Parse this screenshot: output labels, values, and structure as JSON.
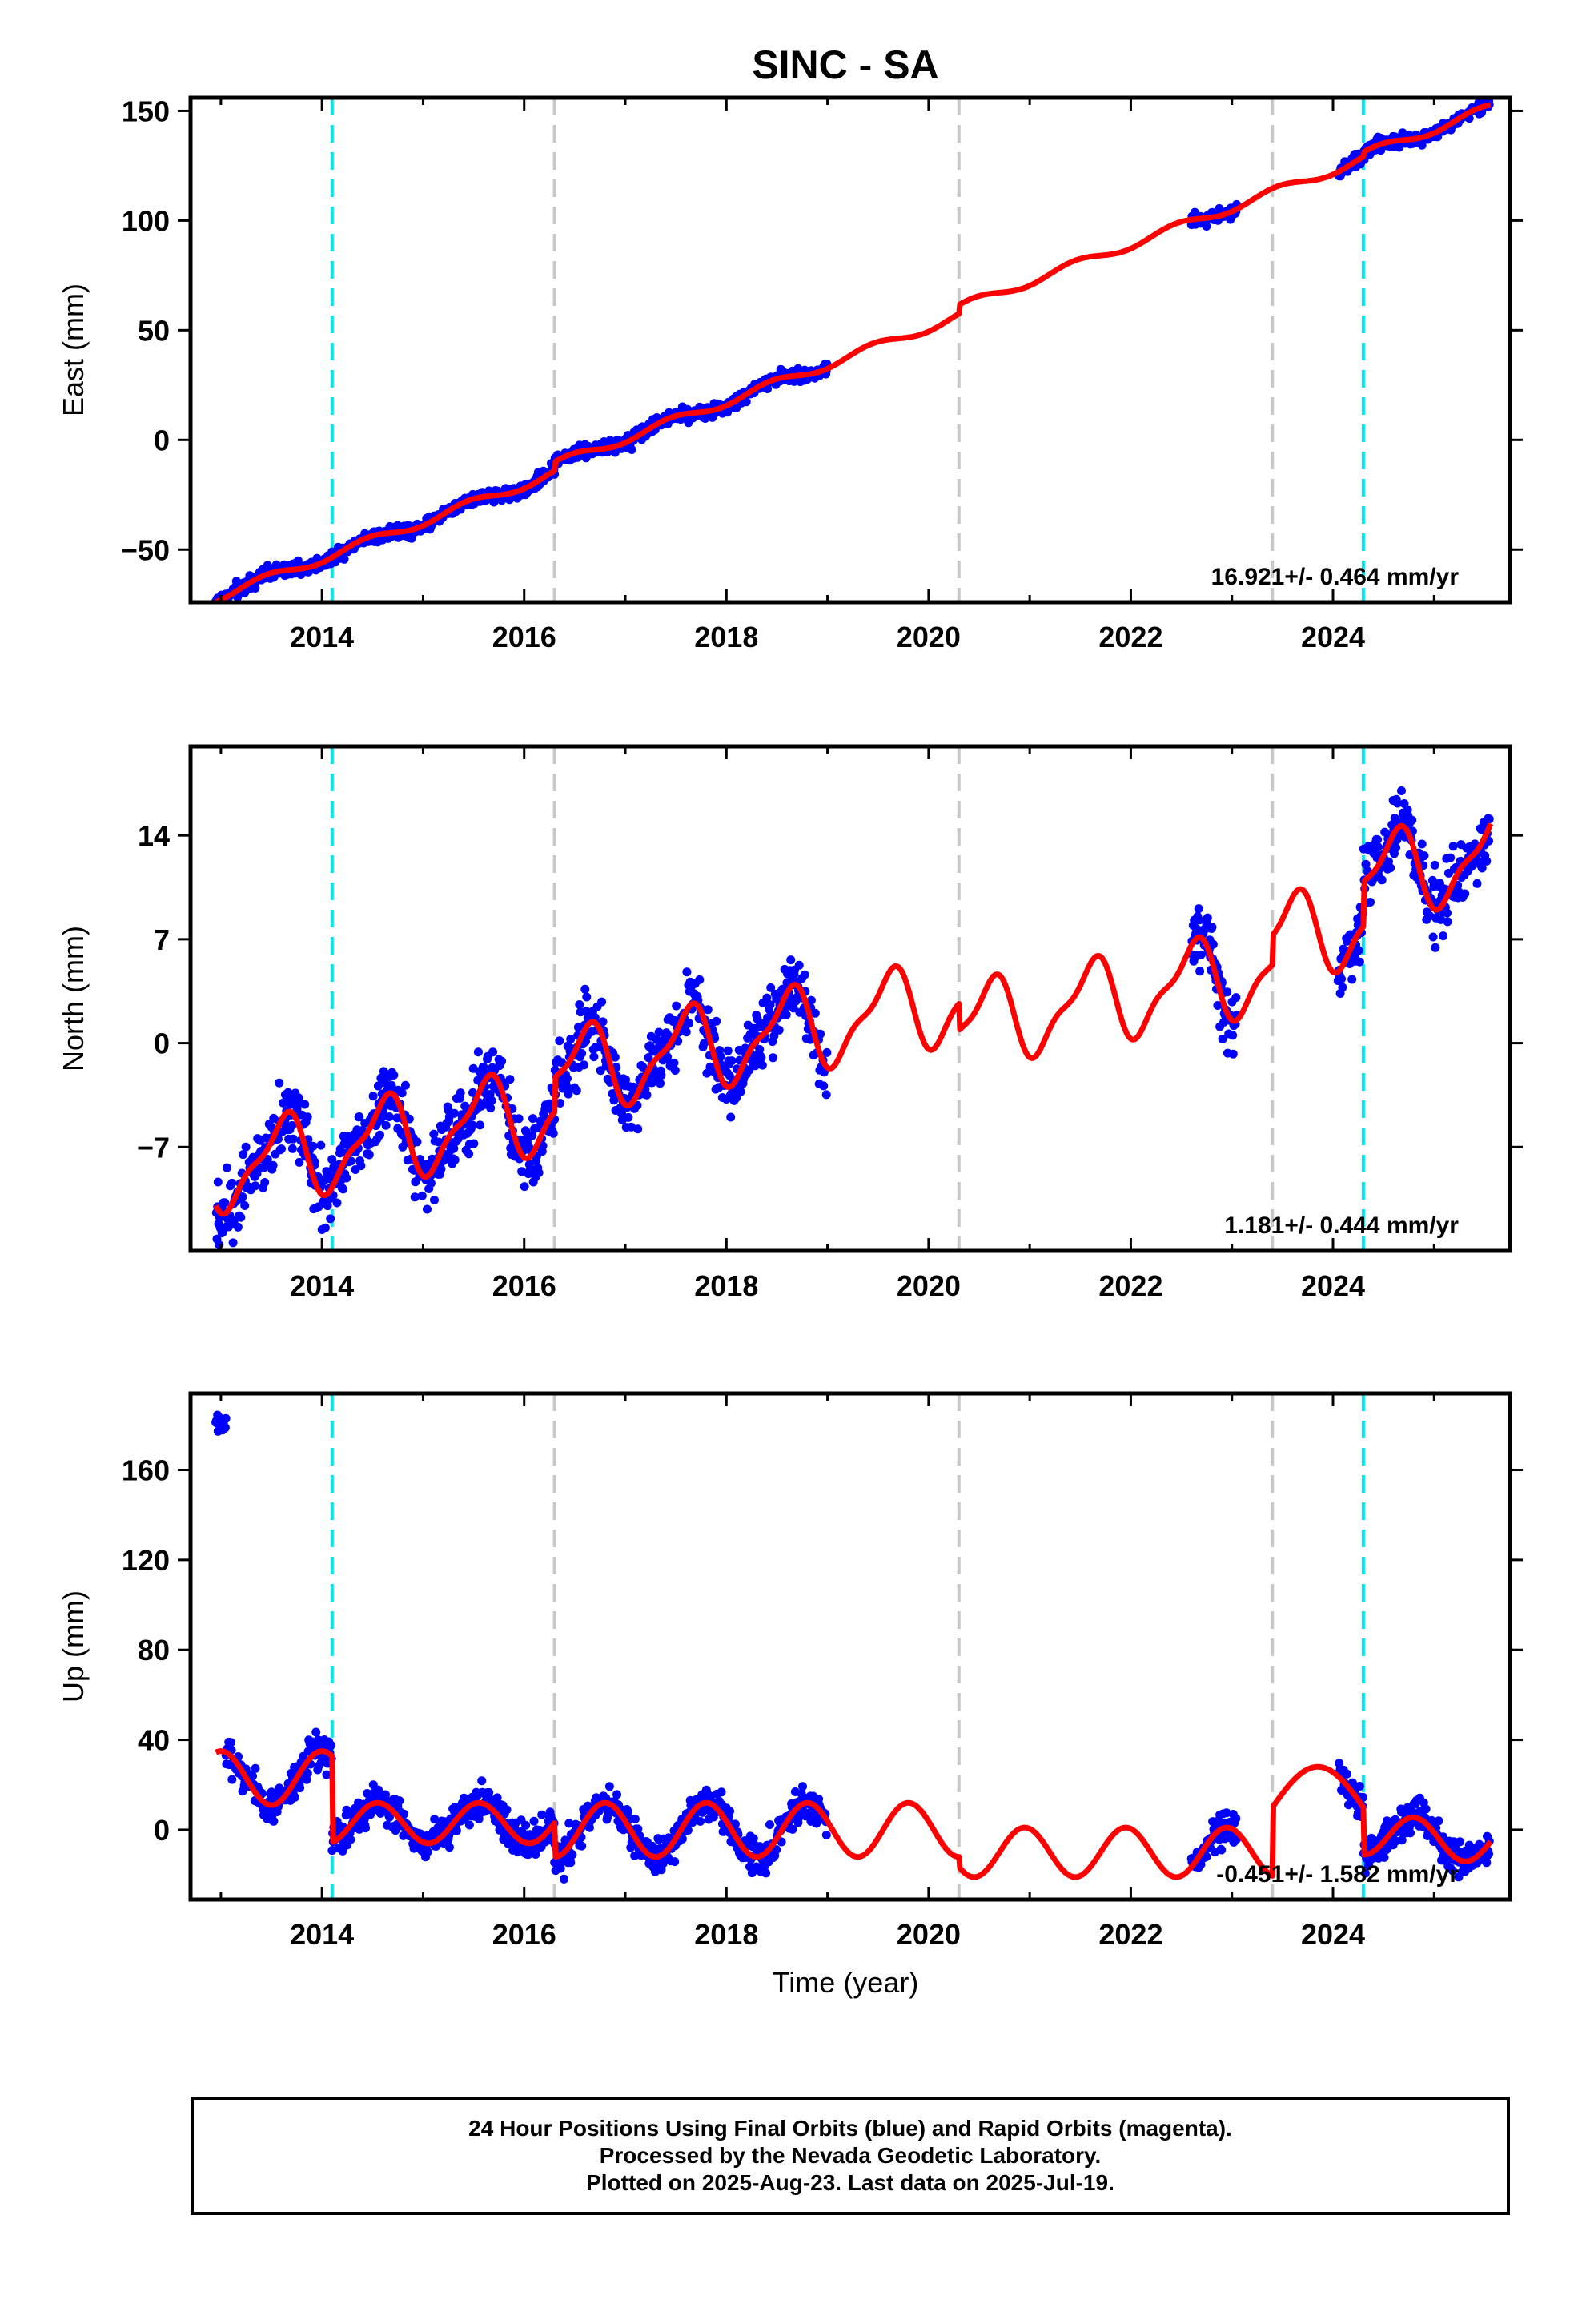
{
  "title": "SINC - SA",
  "chart_data": [
    {
      "type": "scatter",
      "panel": "east",
      "ylabel": "East (mm)",
      "xlabel": "",
      "xlim": [
        2012.7,
        2025.75
      ],
      "ylim": [
        -74,
        156
      ],
      "xticks": [
        2014,
        2016,
        2018,
        2020,
        2022,
        2024
      ],
      "yticks": [
        -50,
        0,
        50,
        100,
        150
      ],
      "rate_label": "16.921+/- 0.464 mm/yr",
      "data_segments": [
        {
          "start": 2012.95,
          "end": 2019.0
        },
        {
          "start": 2022.6,
          "end": 2023.05
        },
        {
          "start": 2024.05,
          "end": 2025.55
        }
      ],
      "offset_lines": {
        "antenna": [
          2014.1,
          2024.3
        ],
        "equipment": [
          2016.3,
          2020.3,
          2023.4
        ]
      },
      "series": [
        {
          "name": "daily positions",
          "role": "points",
          "color": "#0000ff"
        },
        {
          "name": "model fit",
          "role": "line",
          "color": "#ff0000"
        }
      ]
    },
    {
      "type": "scatter",
      "panel": "north",
      "ylabel": "North (mm)",
      "xlabel": "",
      "xlim": [
        2012.7,
        2025.75
      ],
      "ylim": [
        -14,
        20
      ],
      "xticks": [
        2014,
        2016,
        2018,
        2020,
        2022,
        2024
      ],
      "yticks": [
        -7,
        0,
        7,
        14
      ],
      "rate_label": "1.181+/- 0.444 mm/yr",
      "data_segments": [
        {
          "start": 2012.95,
          "end": 2019.0
        },
        {
          "start": 2022.6,
          "end": 2023.05
        },
        {
          "start": 2024.05,
          "end": 2025.55
        }
      ],
      "offset_lines": {
        "antenna": [
          2014.1,
          2024.3
        ],
        "equipment": [
          2016.3,
          2020.3,
          2023.4
        ]
      },
      "series": [
        {
          "name": "daily positions",
          "role": "points",
          "color": "#0000ff"
        },
        {
          "name": "model fit",
          "role": "line",
          "color": "#ff0000"
        }
      ]
    },
    {
      "type": "scatter",
      "panel": "up",
      "ylabel": "Up (mm)",
      "xlabel": "Time (year)",
      "xlim": [
        2012.7,
        2025.75
      ],
      "ylim": [
        -31,
        194
      ],
      "xticks": [
        2014,
        2016,
        2018,
        2020,
        2022,
        2024
      ],
      "yticks": [
        0,
        40,
        80,
        120,
        160
      ],
      "rate_label": "-0.451+/- 1.582 mm/yr",
      "data_segments": [
        {
          "start": 2012.95,
          "end": 2013.05,
          "level": 180
        },
        {
          "start": 2013.05,
          "end": 2019.0
        },
        {
          "start": 2022.6,
          "end": 2023.05
        },
        {
          "start": 2024.05,
          "end": 2025.55
        }
      ],
      "offset_lines": {
        "antenna": [
          2014.1,
          2024.3
        ],
        "equipment": [
          2016.3,
          2020.3,
          2023.4
        ]
      },
      "series": [
        {
          "name": "daily positions",
          "role": "points",
          "color": "#0000ff"
        },
        {
          "name": "model fit",
          "role": "line",
          "color": "#ff0000"
        }
      ]
    }
  ],
  "colors": {
    "points": "#0000ff",
    "model": "#ff0000",
    "antenna_offset": "#00e5ee",
    "equipment_offset": "#c8c8c8"
  },
  "footer": {
    "line1": "24 Hour Positions Using Final Orbits (blue) and Rapid Orbits (magenta).",
    "line2": "Processed by the Nevada Geodetic Laboratory.",
    "line3": "Plotted on 2025-Aug-23. Last data on 2025-Jul-19."
  }
}
